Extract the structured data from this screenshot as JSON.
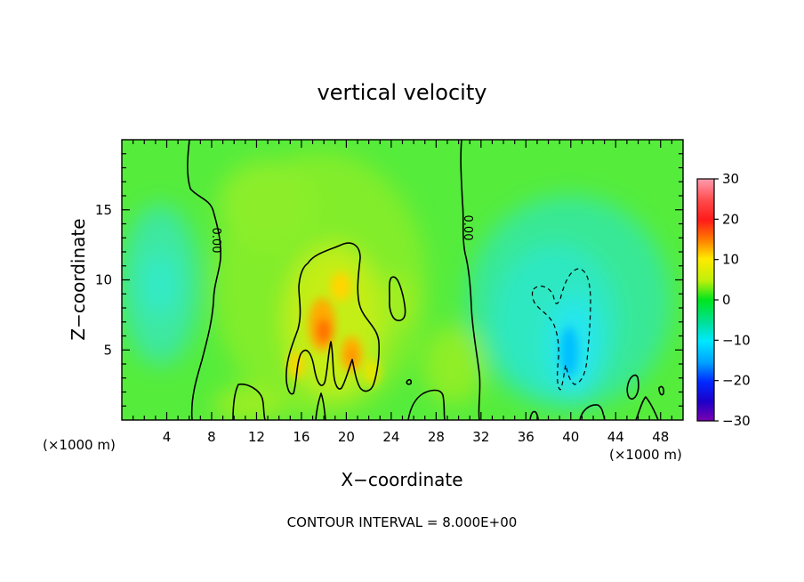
{
  "chart_data": {
    "type": "heatmap",
    "title": "vertical velocity",
    "xlabel": "X−coordinate",
    "ylabel": "Z−coordinate",
    "x_unit_left": "(×1000 m)",
    "x_unit_right": "(×1000 m)",
    "footnote": "CONTOUR INTERVAL = 8.000E+00",
    "xlim": [
      0,
      50
    ],
    "ylim": [
      0,
      20
    ],
    "x_ticks": [
      4,
      8,
      12,
      16,
      20,
      24,
      28,
      32,
      36,
      40,
      44,
      48
    ],
    "y_ticks": [
      5,
      10,
      15
    ],
    "colorbar": {
      "ticks": [
        30,
        20,
        10,
        0,
        -10,
        -20,
        -30
      ],
      "range": [
        -30,
        30
      ],
      "colors": [
        "#ff9bb0",
        "#ff1a1a",
        "#ff8a00",
        "#ffea00",
        "#bff00a",
        "#00e51e",
        "#00e0a0",
        "#00e8ff",
        "#00a0ff",
        "#0028ff",
        "#1d00c8",
        "#7a00b0"
      ]
    },
    "contour_interval": 8,
    "contour_labels": [
      "0.00",
      "0.00"
    ],
    "features": [
      {
        "label": "updraft",
        "x": 18,
        "z": 7,
        "value": 16
      },
      {
        "label": "updraft",
        "x": 20.5,
        "z": 5,
        "value": 14
      },
      {
        "label": "downdraft",
        "x": 40,
        "z": 6,
        "value": -10
      },
      {
        "label": "downdraft",
        "x": 3,
        "z": 9,
        "value": -6
      }
    ]
  }
}
